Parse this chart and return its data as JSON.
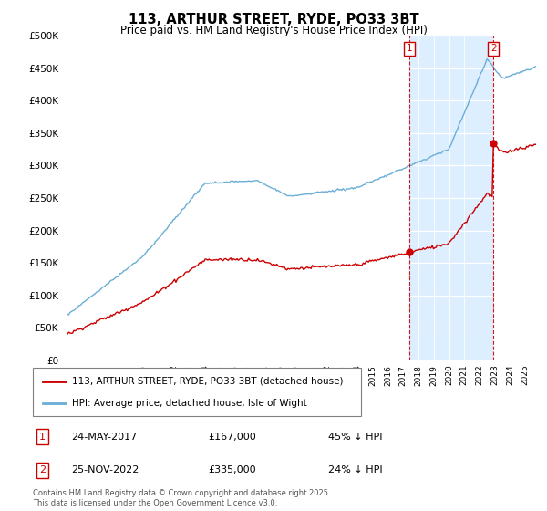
{
  "title": "113, ARTHUR STREET, RYDE, PO33 3BT",
  "subtitle": "Price paid vs. HM Land Registry's House Price Index (HPI)",
  "legend_line1": "113, ARTHUR STREET, RYDE, PO33 3BT (detached house)",
  "legend_line2": "HPI: Average price, detached house, Isle of Wight",
  "transaction1_label": "1",
  "transaction1_date": "24-MAY-2017",
  "transaction1_price": "£167,000",
  "transaction1_hpi": "45% ↓ HPI",
  "transaction1_year": 2017.38,
  "transaction1_value": 167000,
  "transaction2_label": "2",
  "transaction2_date": "25-NOV-2022",
  "transaction2_price": "£335,000",
  "transaction2_hpi": "24% ↓ HPI",
  "transaction2_year": 2022.9,
  "transaction2_value": 335000,
  "hpi_color": "#6baed6",
  "price_color": "#cc0000",
  "vline_color": "#cc0000",
  "shade_color": "#ddeeff",
  "ylim": [
    0,
    500000
  ],
  "yticks": [
    0,
    50000,
    100000,
    150000,
    200000,
    250000,
    300000,
    350000,
    400000,
    450000,
    500000
  ],
  "footer": "Contains HM Land Registry data © Crown copyright and database right 2025.\nThis data is licensed under the Open Government Licence v3.0.",
  "background_color": "#ffffff"
}
